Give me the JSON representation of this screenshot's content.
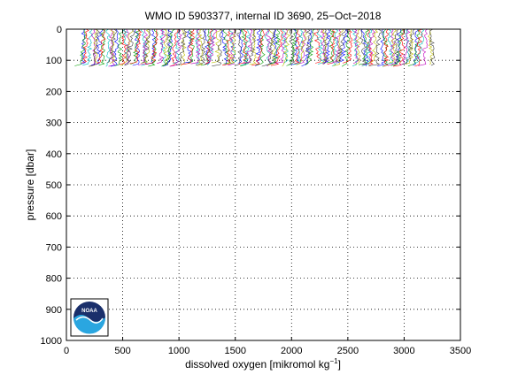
{
  "chart_data": {
    "type": "line",
    "title": "WMO ID 5903377, internal ID 3690, 25−Oct−2018",
    "xlabel": "dissolved oxygen [mikromol kg",
    "xlabel_superscript": "−1",
    "xlabel_suffix": "]",
    "ylabel": "pressure [dbar]",
    "xlim": [
      0,
      3500
    ],
    "ylim": [
      0,
      1000
    ],
    "y_reversed": true,
    "grid": true,
    "grid_style": "dotted",
    "x_ticks": [
      0,
      500,
      1000,
      1500,
      2000,
      2500,
      3000,
      3500
    ],
    "y_ticks": [
      0,
      100,
      200,
      300,
      400,
      500,
      600,
      700,
      800,
      900,
      1000
    ],
    "x_tick_labels": [
      "0",
      "500",
      "1000",
      "1500",
      "2000",
      "2500",
      "3000",
      "3500"
    ],
    "y_tick_labels": [
      "0",
      "100",
      "200",
      "300",
      "400",
      "500",
      "600",
      "700",
      "800",
      "900",
      "1000"
    ],
    "profiles": {
      "description_of_extent": "many overlapping colored oxygen profiles",
      "x_range": [
        140,
        3260
      ],
      "pressure_range": [
        0,
        120
      ],
      "count_estimate": 140
    },
    "series_colors": [
      "#0000ff",
      "#00a000",
      "#ff0000",
      "#00bfbf",
      "#bf00bf",
      "#bfbf00",
      "#404040"
    ]
  },
  "logo": {
    "text": "NOAA",
    "colors": {
      "dark": "#1a2f6b",
      "light": "#2aa6e0",
      "white": "#ffffff"
    }
  }
}
